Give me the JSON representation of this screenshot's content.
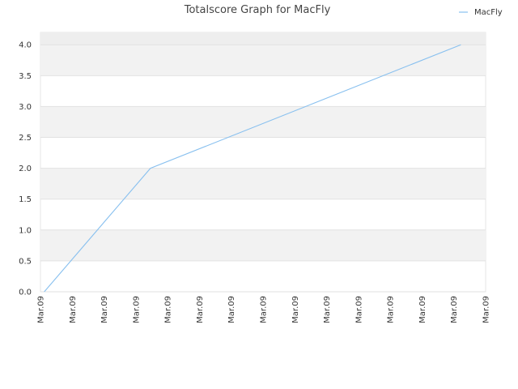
{
  "chart_data": {
    "type": "line",
    "title": "Totalscore Graph for MacFly",
    "xlabel": "",
    "ylabel": "",
    "x_tick_labels": [
      "Mar.09",
      "Mar.09",
      "Mar.09",
      "Mar.09",
      "Mar.09",
      "Mar.09",
      "Mar.09",
      "Mar.09",
      "Mar.09",
      "Mar.09",
      "Mar.09",
      "Mar.09",
      "Mar.09",
      "Mar.09",
      "Mar.09"
    ],
    "y_ticks": [
      "0.0",
      "0.5",
      "1.0",
      "1.5",
      "2.0",
      "2.5",
      "3.0",
      "3.5",
      "4.0"
    ],
    "ylim": [
      0,
      4.2
    ],
    "legend_position": "top-right",
    "grid": true,
    "series": [
      {
        "name": "MacFly",
        "color": "#88c0ef",
        "points": [
          {
            "x": 0.06,
            "y": 0.0
          },
          {
            "x": 1.73,
            "y": 2.0
          },
          {
            "x": 6.61,
            "y": 4.0
          }
        ]
      }
    ],
    "x_range": [
      0,
      7
    ]
  }
}
